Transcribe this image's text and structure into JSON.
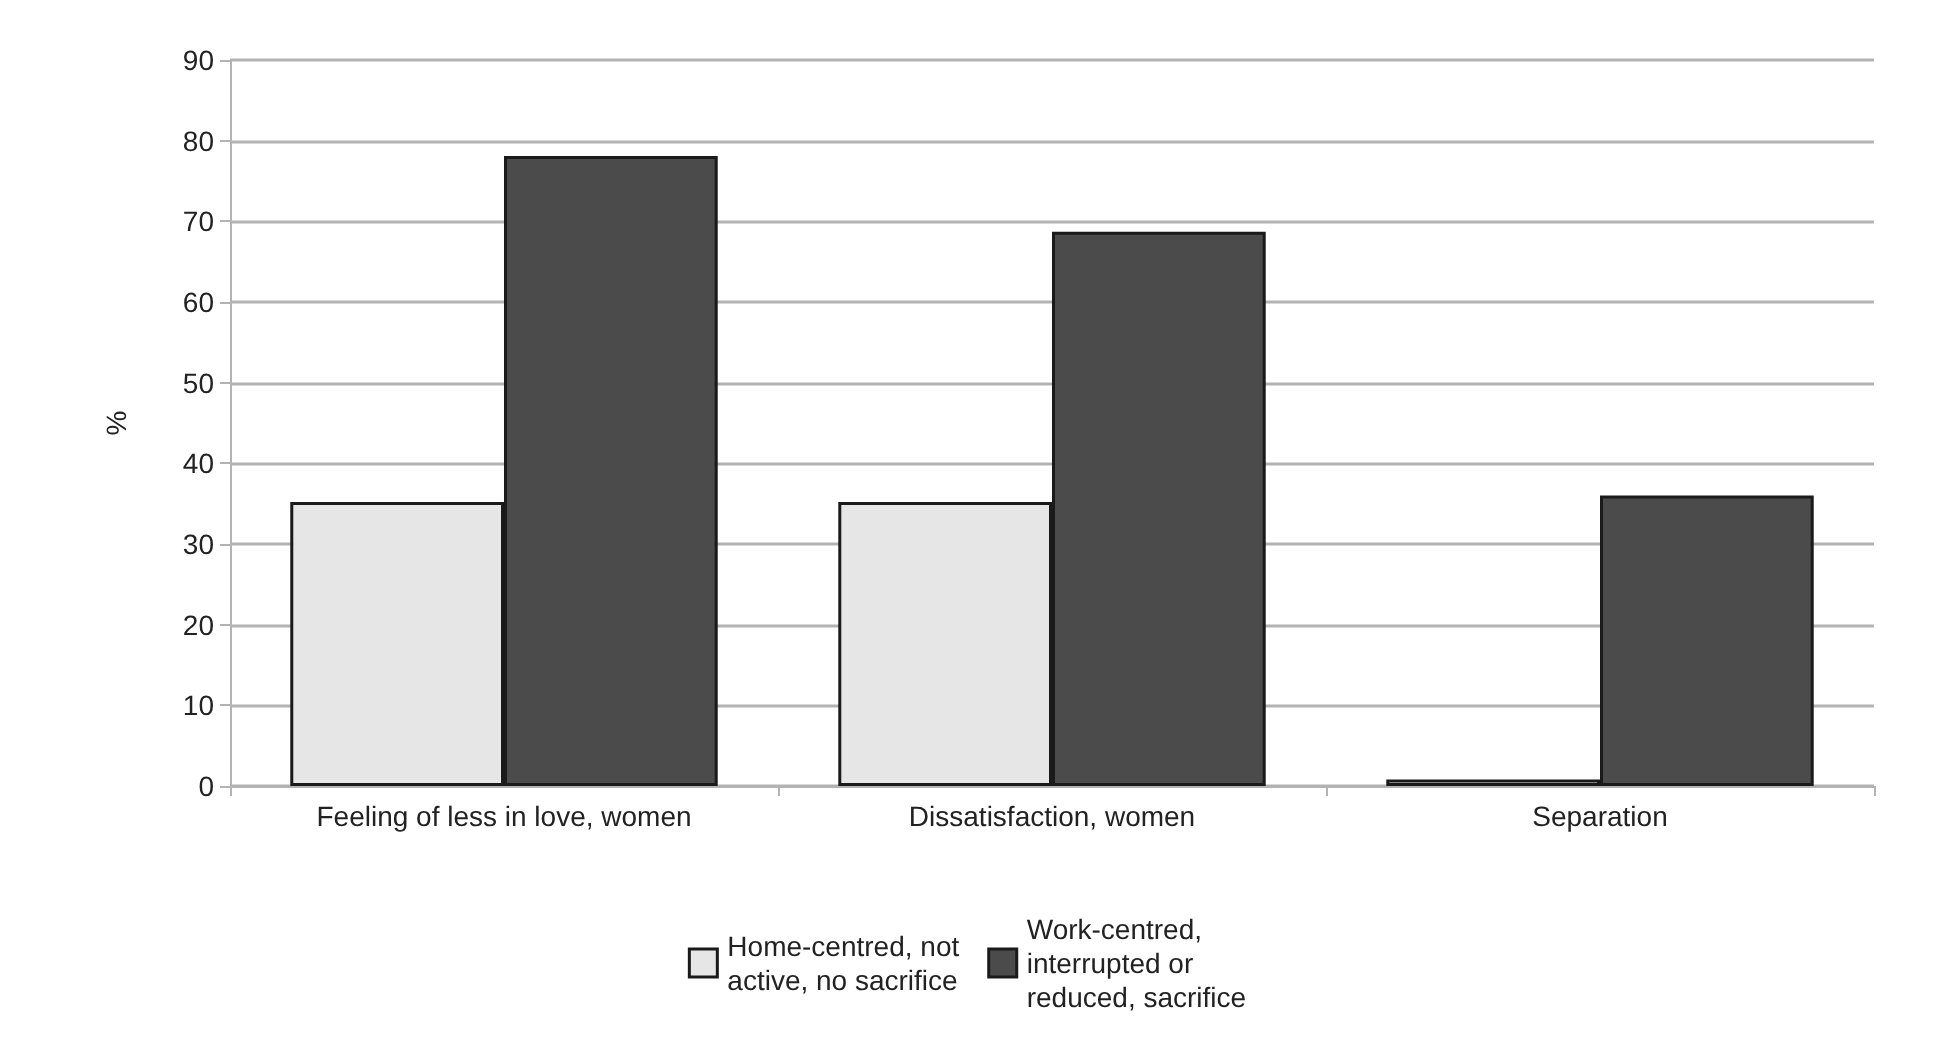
{
  "chart_data": {
    "type": "bar",
    "ylabel": "%",
    "categories": [
      "Feeling of less in love, women",
      "Dissatisfaction, women",
      "Separation"
    ],
    "series": [
      {
        "name": "Home-centred, not\nactive, no sacrifice",
        "color": "#e6e6e6",
        "values": [
          35.2,
          35.2,
          0.8
        ]
      },
      {
        "name": "Work-centred,\ninterrupted or\nreduced, sacrifice",
        "color": "#4b4b4b",
        "values": [
          78.1,
          68.7,
          36
        ]
      }
    ],
    "ylim": [
      0,
      90
    ],
    "yticks": [
      0,
      10,
      20,
      30,
      40,
      50,
      60,
      70,
      80,
      90
    ],
    "grid": "y",
    "legend": "bottom"
  }
}
